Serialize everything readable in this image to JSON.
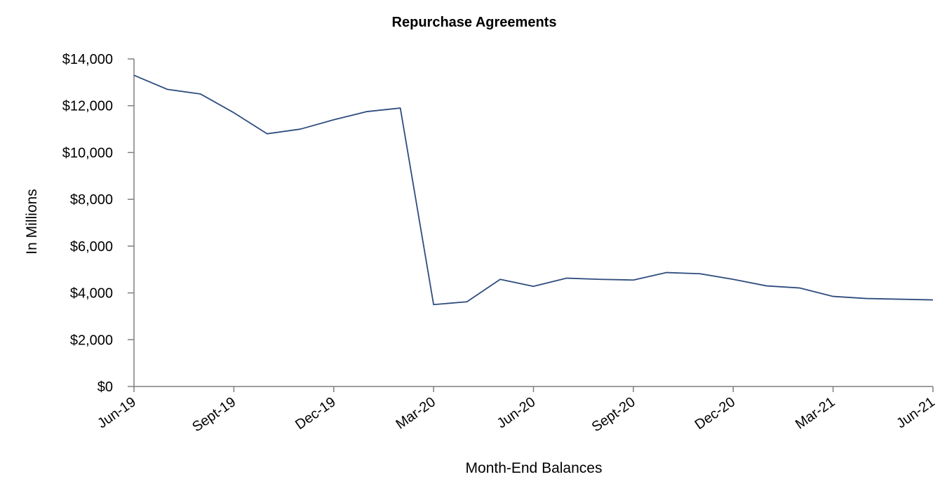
{
  "chart_data": {
    "type": "line",
    "title": "Repurchase Agreements",
    "xlabel": "Month-End Balances",
    "ylabel": "In Millions",
    "ylim": [
      0,
      14000
    ],
    "yticks": [
      "$0",
      "$2,000",
      "$4,000",
      "$6,000",
      "$8,000",
      "$10,000",
      "$12,000",
      "$14,000"
    ],
    "xticks": [
      "Jun-19",
      "Sept-19",
      "Dec-19",
      "Mar-20",
      "Jun-20",
      "Sept-20",
      "Dec-20",
      "Mar-21",
      "Jun-21"
    ],
    "grid": false,
    "line_color": "#2f4d7e",
    "axis_color": "#7f7f7f",
    "series": [
      {
        "x": [
          "Jun-19",
          "Jul-19",
          "Aug-19",
          "Sept-19",
          "Oct-19",
          "Nov-19",
          "Dec-19",
          "Jan-20",
          "Feb-20",
          "Mar-20",
          "Apr-20",
          "May-20",
          "Jun-20",
          "Jul-20",
          "Aug-20",
          "Sept-20",
          "Oct-20",
          "Nov-20",
          "Dec-20",
          "Jan-21",
          "Feb-21",
          "Mar-21",
          "Apr-21",
          "May-21",
          "Jun-21"
        ],
        "values": [
          13300,
          12700,
          12500,
          11700,
          10800,
          11000,
          11400,
          11750,
          11900,
          3500,
          3620,
          4580,
          4280,
          4630,
          4580,
          4550,
          4870,
          4820,
          4580,
          4300,
          4210,
          3850,
          3760,
          3730,
          3700
        ]
      }
    ]
  }
}
